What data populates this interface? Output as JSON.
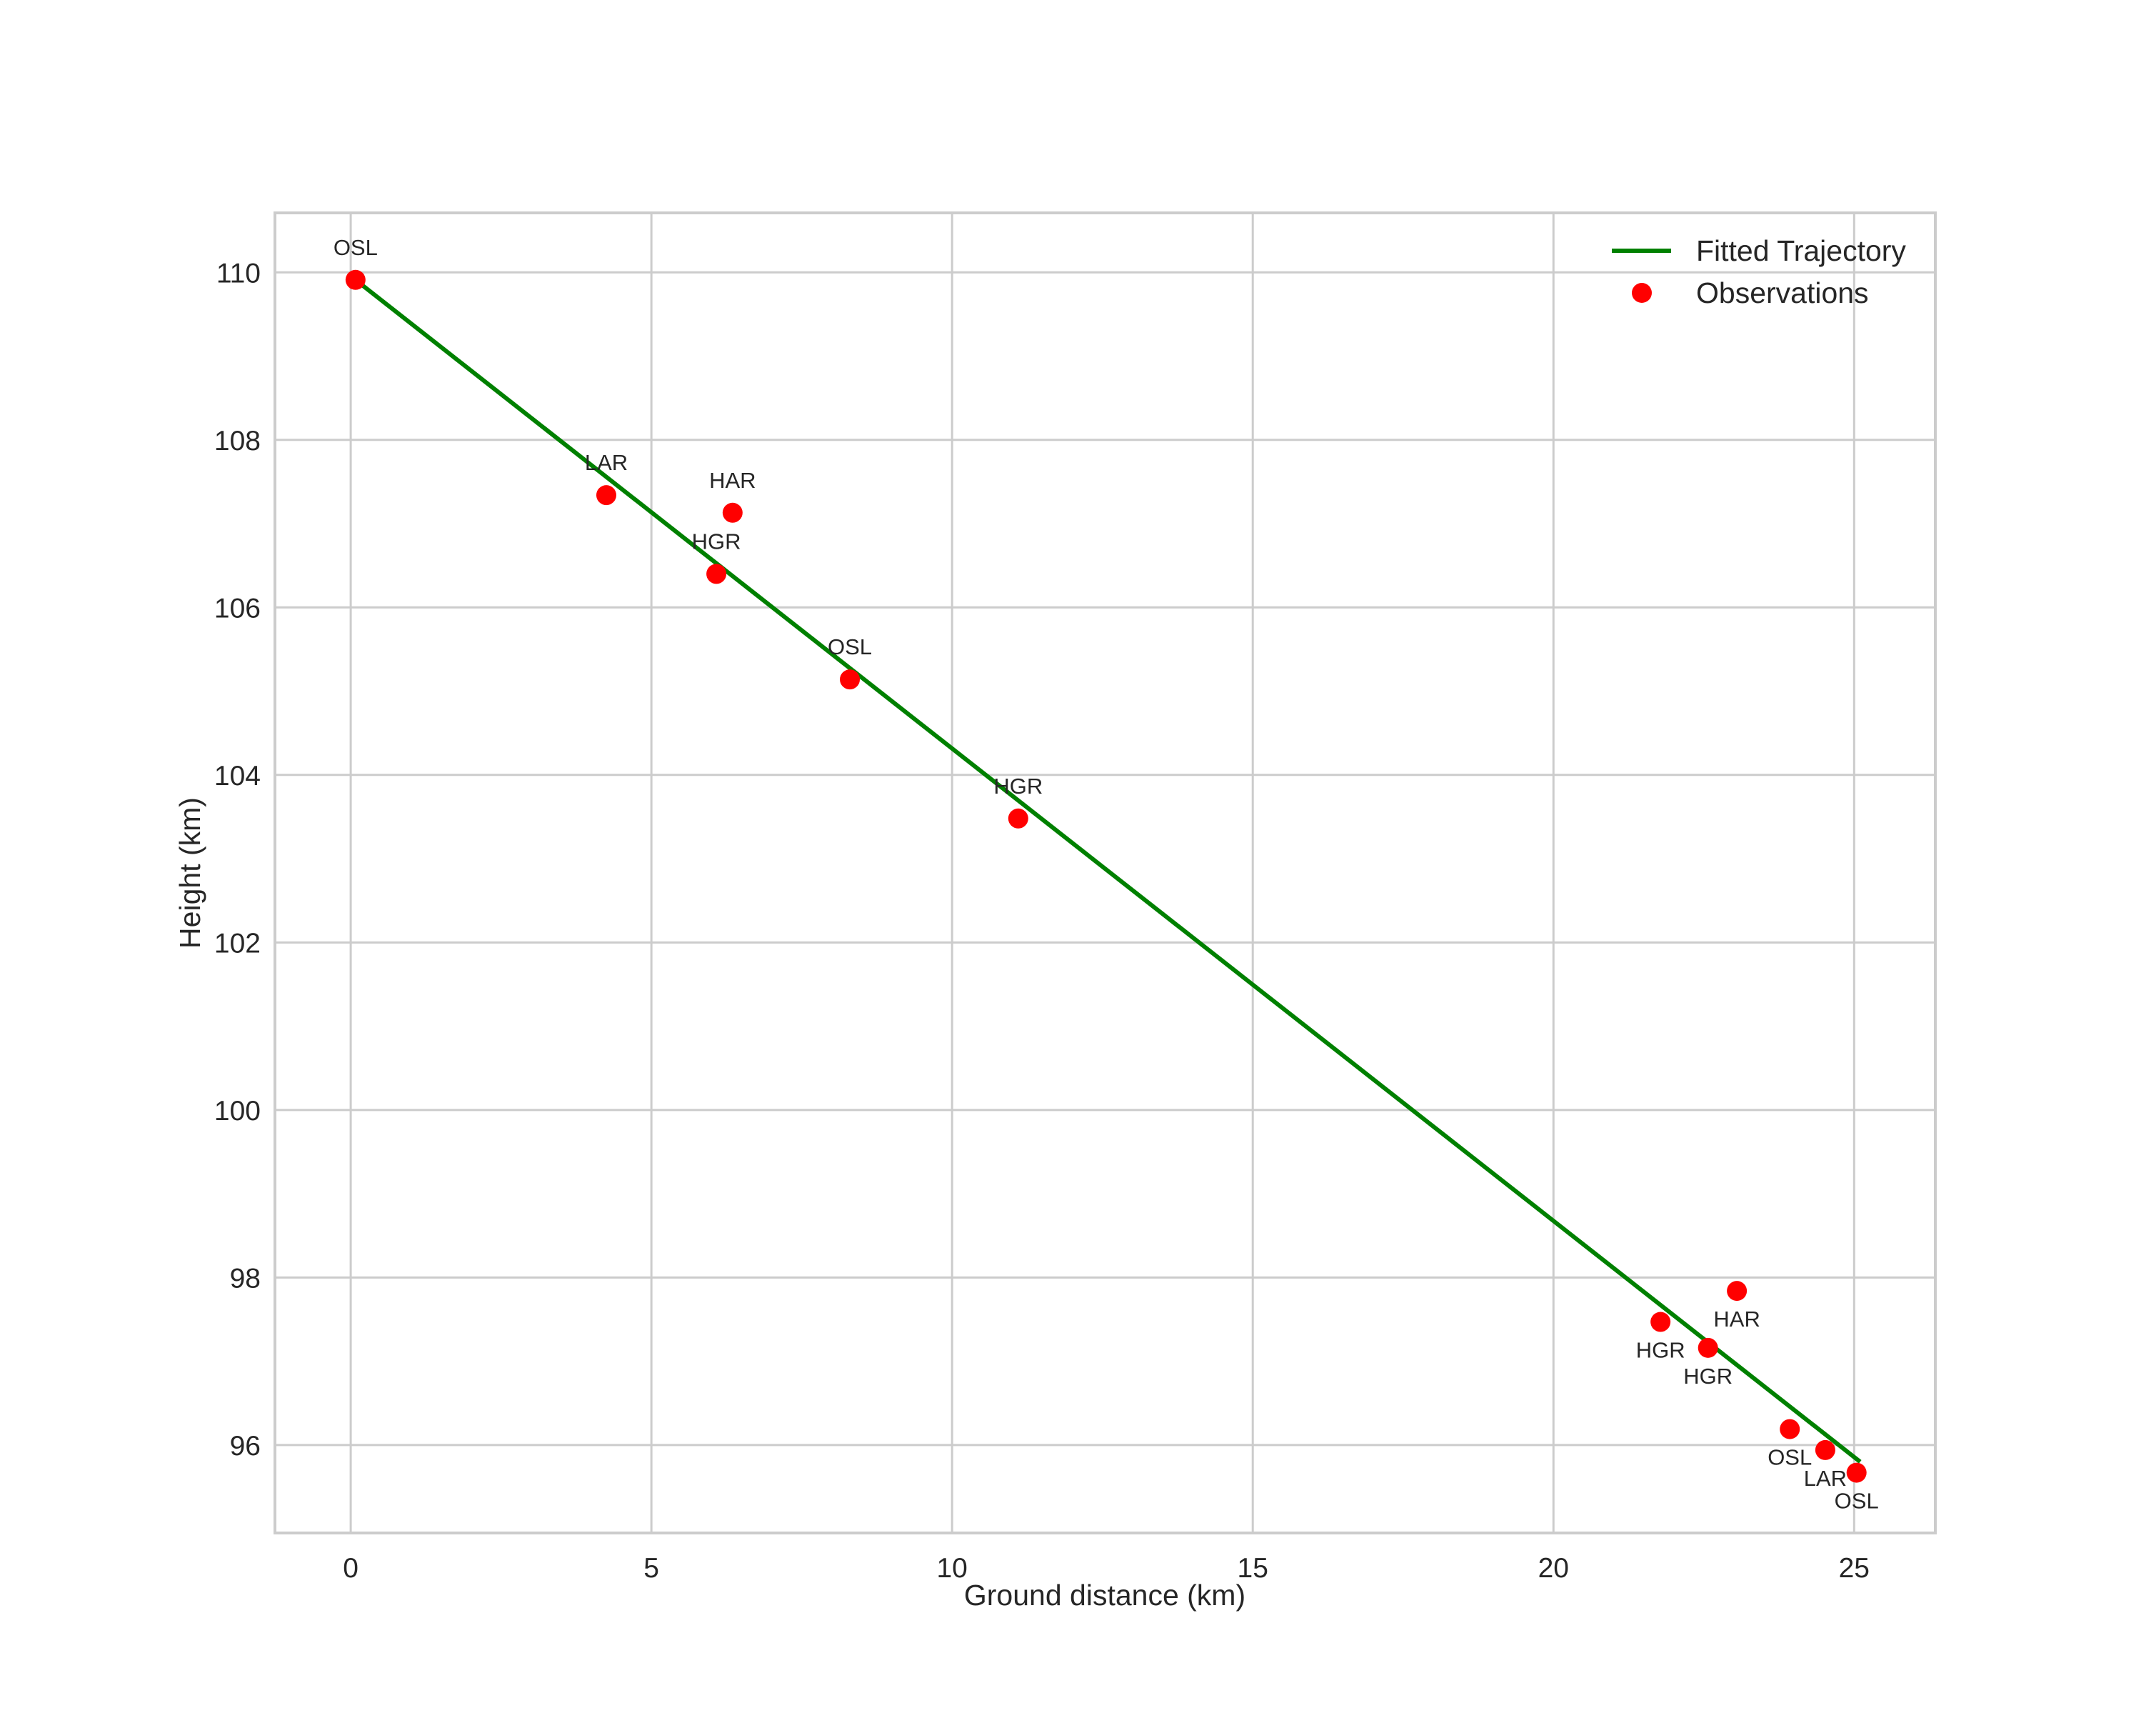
{
  "chart_data": {
    "type": "scatter",
    "title": "",
    "xlabel": "Ground distance (km)",
    "ylabel": "Height (km)",
    "xlim": [
      -1.26,
      26.35
    ],
    "ylim": [
      94.95,
      110.71
    ],
    "xticks": [
      0,
      5,
      10,
      15,
      20,
      25
    ],
    "yticks": [
      96,
      98,
      100,
      102,
      104,
      106,
      108,
      110
    ],
    "grid": true,
    "legend": {
      "position": "upper right",
      "entries": [
        {
          "label": "Fitted Trajectory",
          "type": "line",
          "color": "#008000"
        },
        {
          "label": "Observations",
          "type": "marker",
          "color": "#ff0000"
        }
      ]
    },
    "series": [
      {
        "name": "Fitted Trajectory",
        "type": "line",
        "color": "#008000",
        "x": [
          0.08,
          25.1
        ],
        "y": [
          109.91,
          95.8
        ]
      },
      {
        "name": "Observations",
        "type": "scatter",
        "color": "#ff0000",
        "points": [
          {
            "x": 0.08,
            "y": 109.91,
            "label": "OSL",
            "label_pos": "above"
          },
          {
            "x": 4.25,
            "y": 107.34,
            "label": "LAR",
            "label_pos": "above"
          },
          {
            "x": 6.35,
            "y": 107.13,
            "label": "HAR",
            "label_pos": "above"
          },
          {
            "x": 6.08,
            "y": 106.4,
            "label": "HGR",
            "label_pos": "above"
          },
          {
            "x": 8.3,
            "y": 105.14,
            "label": "OSL",
            "label_pos": "above"
          },
          {
            "x": 11.1,
            "y": 103.48,
            "label": "HGR",
            "label_pos": "above"
          },
          {
            "x": 21.78,
            "y": 97.47,
            "label": "HGR",
            "label_pos": "below"
          },
          {
            "x": 23.05,
            "y": 97.84,
            "label": "HAR",
            "label_pos": "below"
          },
          {
            "x": 22.57,
            "y": 97.16,
            "label": "HGR",
            "label_pos": "below"
          },
          {
            "x": 23.93,
            "y": 96.19,
            "label": "OSL",
            "label_pos": "below"
          },
          {
            "x": 24.52,
            "y": 95.94,
            "label": "LAR",
            "label_pos": "below"
          },
          {
            "x": 25.04,
            "y": 95.67,
            "label": "OSL",
            "label_pos": "below"
          }
        ]
      }
    ]
  },
  "axes": {
    "xlabel": "Ground distance (km)",
    "ylabel": "Height (km)"
  },
  "legend": {
    "line_label": "Fitted Trajectory",
    "marker_label": "Observations"
  },
  "colors": {
    "line": "#008000",
    "marker": "#ff0000",
    "grid": "#cccccc",
    "text": "#262626"
  }
}
